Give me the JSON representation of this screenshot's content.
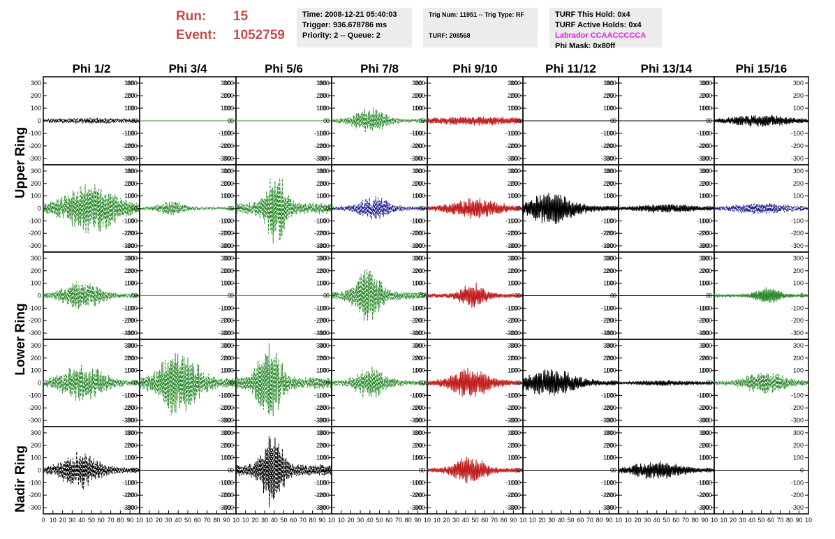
{
  "run": {
    "run_label": "Run:",
    "run_value": "15",
    "event_label": "Event:",
    "event_value": "1052759"
  },
  "time_box": {
    "time": "Time: 2008-12-21 05:40:03",
    "trigger": "Trigger: 936.678786 ms",
    "priority": "Priority: 2 -- Queue: 2"
  },
  "trig_box": {
    "trig": "Trig Num: 11951 -- Trig Type: RF",
    "turf": "TURF: 208568"
  },
  "turf_box": {
    "hold": "TURF This Hold: 0x4",
    "active": "TURF Active Holds: 0x4",
    "labrador": "Labrador CCAACCCCCA",
    "phimask": "Phi Mask: 0x80ff",
    "labrador_color": "#e020e0"
  },
  "ring_labels": [
    "Upper Ring",
    "Lower Ring",
    "Nadir Ring"
  ],
  "chart_data": {
    "type": "line",
    "columns": [
      "Phi 1/2",
      "Phi 3/4",
      "Phi 5/6",
      "Phi 7/8",
      "Phi 9/10",
      "Phi 11/12",
      "Phi 13/14",
      "Phi 15/16"
    ],
    "ylim": [
      -350,
      350
    ],
    "yticks": [
      300,
      200,
      100,
      0,
      -100,
      -200,
      -300
    ],
    "xlim": [
      0,
      100
    ],
    "xticks": [
      0,
      10,
      20,
      30,
      40,
      50,
      60,
      70,
      80,
      90,
      100
    ],
    "xtick_labels_bottom": "0 10 20 30 40 50 60 70 80 90 10",
    "colors": {
      "green": "#2e8b2e",
      "red": "#c02020",
      "blue": "#20208c",
      "black": "#000000"
    },
    "rows": [
      [
        {
          "color": "black",
          "dash": true,
          "amp": 25,
          "center": 50,
          "width": 60
        },
        {
          "color": "green",
          "dash": false,
          "amp": 0,
          "center": 50,
          "width": 50
        },
        {
          "color": "green",
          "dash": false,
          "amp": 0,
          "center": 50,
          "width": 50
        },
        {
          "color": "green",
          "dash": true,
          "amp": 110,
          "center": 40,
          "width": 18
        },
        {
          "color": "red",
          "dash": false,
          "amp": 40,
          "center": 50,
          "width": 60
        },
        {
          "color": "black",
          "dash": false,
          "amp": 0,
          "center": 50,
          "width": 50
        },
        {
          "color": "black",
          "dash": false,
          "amp": 0,
          "center": 50,
          "width": 50
        },
        {
          "color": "black",
          "dash": false,
          "amp": 55,
          "center": 48,
          "width": 35
        }
      ],
      [
        {
          "color": "green",
          "dash": true,
          "amp": 220,
          "center": 50,
          "width": 30
        },
        {
          "color": "green",
          "dash": true,
          "amp": 70,
          "center": 33,
          "width": 15
        },
        {
          "color": "green",
          "dash": true,
          "amp": 320,
          "center": 42,
          "width": 12
        },
        {
          "color": "blue",
          "dash": true,
          "amp": 110,
          "center": 45,
          "width": 18
        },
        {
          "color": "red",
          "dash": false,
          "amp": 90,
          "center": 50,
          "width": 30
        },
        {
          "color": "black",
          "dash": false,
          "amp": 150,
          "center": 30,
          "width": 25
        },
        {
          "color": "black",
          "dash": false,
          "amp": 40,
          "center": 50,
          "width": 40
        },
        {
          "color": "blue",
          "dash": true,
          "amp": 50,
          "center": 50,
          "width": 40
        }
      ],
      [
        {
          "color": "green",
          "dash": true,
          "amp": 120,
          "center": 40,
          "width": 22
        },
        {
          "color": "green",
          "dash": false,
          "amp": 0,
          "center": 50,
          "width": 50
        },
        {
          "color": "green",
          "dash": false,
          "amp": 0,
          "center": 50,
          "width": 50
        },
        {
          "color": "green",
          "dash": true,
          "amp": 230,
          "center": 38,
          "width": 15
        },
        {
          "color": "red",
          "dash": false,
          "amp": 110,
          "center": 48,
          "width": 15
        },
        {
          "color": "black",
          "dash": false,
          "amp": 0,
          "center": 50,
          "width": 50
        },
        {
          "color": "black",
          "dash": false,
          "amp": 0,
          "center": 50,
          "width": 50
        },
        {
          "color": "green",
          "dash": false,
          "amp": 70,
          "center": 57,
          "width": 15
        }
      ],
      [
        {
          "color": "green",
          "dash": true,
          "amp": 160,
          "center": 40,
          "width": 25
        },
        {
          "color": "green",
          "dash": true,
          "amp": 300,
          "center": 40,
          "width": 22
        },
        {
          "color": "green",
          "dash": true,
          "amp": 330,
          "center": 35,
          "width": 15
        },
        {
          "color": "green",
          "dash": true,
          "amp": 140,
          "center": 40,
          "width": 18
        },
        {
          "color": "red",
          "dash": false,
          "amp": 130,
          "center": 45,
          "width": 22
        },
        {
          "color": "black",
          "dash": false,
          "amp": 120,
          "center": 30,
          "width": 30
        },
        {
          "color": "black",
          "dash": false,
          "amp": 25,
          "center": 50,
          "width": 40
        },
        {
          "color": "green",
          "dash": true,
          "amp": 100,
          "center": 55,
          "width": 25
        }
      ],
      [
        {
          "color": "black",
          "dash": true,
          "amp": 160,
          "center": 38,
          "width": 22
        },
        {
          "color": "black",
          "dash": false,
          "amp": 0,
          "center": 50,
          "width": 50
        },
        {
          "color": "black",
          "dash": true,
          "amp": 330,
          "center": 38,
          "width": 12
        },
        {
          "color": "black",
          "dash": false,
          "amp": 0,
          "center": 50,
          "width": 50
        },
        {
          "color": "red",
          "dash": false,
          "amp": 120,
          "center": 45,
          "width": 18
        },
        {
          "color": "black",
          "dash": false,
          "amp": 0,
          "center": 50,
          "width": 50
        },
        {
          "color": "black",
          "dash": false,
          "amp": 80,
          "center": 40,
          "width": 30
        },
        {
          "color": "black",
          "dash": false,
          "amp": 0,
          "center": 50,
          "width": 50
        }
      ]
    ]
  }
}
